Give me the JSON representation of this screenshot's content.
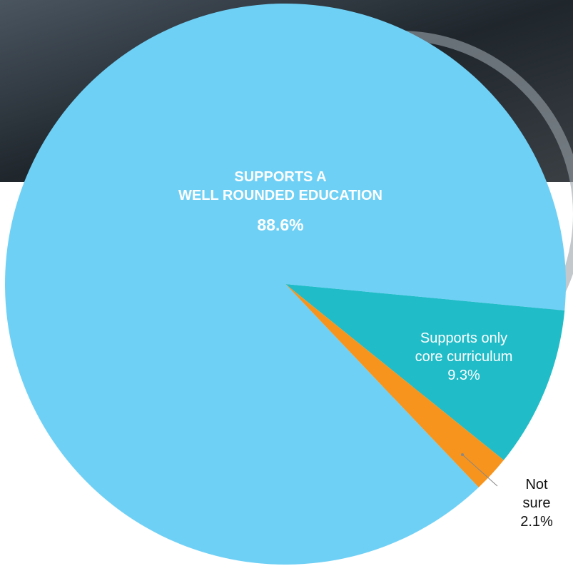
{
  "chart_data": {
    "type": "pie",
    "categories": [
      "SUPPORTS A\nWELL ROUNDED EDUCATION",
      "Supports only\ncore curriculum",
      "Not sure"
    ],
    "values": [
      88.6,
      9.3,
      2.1
    ],
    "value_labels": [
      "88.6%",
      "9.3%",
      "2.1%"
    ],
    "colors": [
      "#6fd0f6",
      "#20bcc8",
      "#f7941d"
    ]
  }
}
